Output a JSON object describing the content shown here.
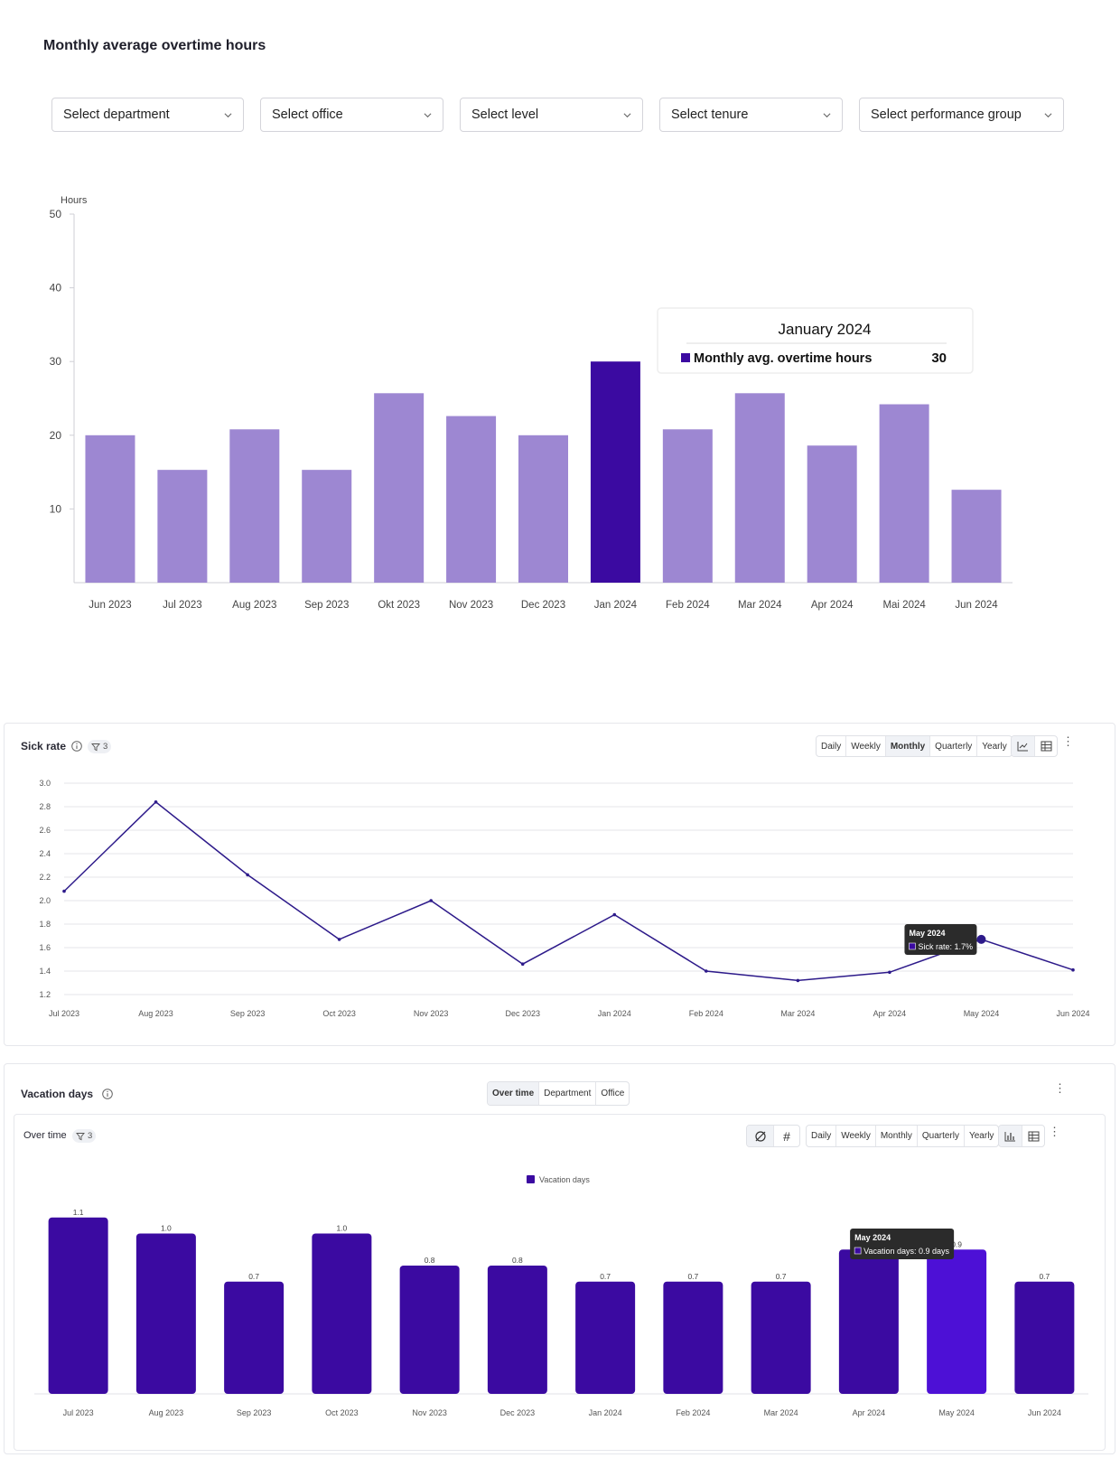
{
  "overtime": {
    "title": "Monthly average overtime hours",
    "filters": [
      "Select department",
      "Select office",
      "Select level",
      "Select tenure",
      "Select performance group"
    ],
    "tooltip": {
      "title": "January 2024",
      "label": "Monthly avg. overtime hours",
      "value": "30"
    }
  },
  "sick": {
    "title": "Sick rate",
    "filter_count": "3",
    "periods": [
      "Daily",
      "Weekly",
      "Monthly",
      "Quarterly",
      "Yearly"
    ],
    "active_period": "Monthly",
    "tooltip": {
      "title": "May 2024",
      "label": "Sick rate: 1.7%"
    }
  },
  "vacation": {
    "title": "Vacation days",
    "views": [
      "Over time",
      "Department",
      "Office"
    ],
    "active_view": "Over time",
    "sub_title": "Over time",
    "filter_count": "3",
    "periods": [
      "Daily",
      "Weekly",
      "Monthly",
      "Quarterly",
      "Yearly"
    ],
    "tooltip": {
      "title": "May 2024",
      "label": "Vacation days: 0.9 days"
    }
  },
  "chart_data": [
    {
      "type": "bar",
      "title": "Monthly average overtime hours",
      "ylabel": "Hours",
      "ylim": [
        0,
        50
      ],
      "yticks": [
        10,
        20,
        30,
        40,
        50
      ],
      "categories": [
        "Jun 2023",
        "Jul 2023",
        "Aug 2023",
        "Sep 2023",
        "Okt 2023",
        "Nov 2023",
        "Dec 2023",
        "Jan 2024",
        "Feb 2024",
        "Mar 2024",
        "Apr 2024",
        "Mai 2024",
        "Jun 2024"
      ],
      "series": [
        {
          "name": "Monthly avg. overtime hours",
          "values": [
            20,
            15.3,
            20.8,
            15.3,
            25.7,
            22.6,
            20,
            30,
            20.8,
            25.7,
            18.6,
            24.2,
            12.6
          ]
        }
      ],
      "highlighted": "Jan 2024",
      "colors": {
        "bar": "#9d87d2",
        "highlight": "#3b0aa1"
      }
    },
    {
      "type": "line",
      "title": "Sick rate",
      "ylim": [
        1.2,
        3.0
      ],
      "yticks": [
        1.2,
        1.4,
        1.6,
        1.8,
        2.0,
        2.2,
        2.4,
        2.6,
        2.8,
        3.0
      ],
      "categories": [
        "Jul 2023",
        "Aug 2023",
        "Sep 2023",
        "Oct 2023",
        "Nov 2023",
        "Dec 2023",
        "Jan 2024",
        "Feb 2024",
        "Mar 2024",
        "Apr 2024",
        "May 2024",
        "Jun 2024"
      ],
      "series": [
        {
          "name": "Sick rate",
          "values": [
            2.08,
            2.84,
            2.22,
            1.67,
            2.0,
            1.46,
            1.88,
            1.4,
            1.32,
            1.39,
            1.67,
            1.41
          ]
        }
      ],
      "highlighted": "May 2024",
      "grid": true,
      "colors": {
        "line": "#2d1a8a"
      }
    },
    {
      "type": "bar",
      "title": "Vacation days",
      "legend": [
        "Vacation days"
      ],
      "legend_position": "top-center",
      "categories": [
        "Jul 2023",
        "Aug 2023",
        "Sep 2023",
        "Oct 2023",
        "Nov 2023",
        "Dec 2023",
        "Jan 2024",
        "Feb 2024",
        "Mar 2024",
        "Apr 2024",
        "May 2024",
        "Jun 2024"
      ],
      "series": [
        {
          "name": "Vacation days",
          "values": [
            1.1,
            1.0,
            0.7,
            1.0,
            0.8,
            0.8,
            0.7,
            0.7,
            0.7,
            0.9,
            0.9,
            0.7
          ]
        }
      ],
      "data_labels": [
        "1.1",
        "1.0",
        "0.7",
        "1.0",
        "0.8",
        "0.8",
        "0.7",
        "0.7",
        "0.7",
        "",
        "0.9",
        "0.7"
      ],
      "ylim": [
        0,
        1.2
      ],
      "highlighted": "May 2024",
      "colors": {
        "bar": "#3b0aa1",
        "highlight": "#4d10d6"
      }
    }
  ]
}
